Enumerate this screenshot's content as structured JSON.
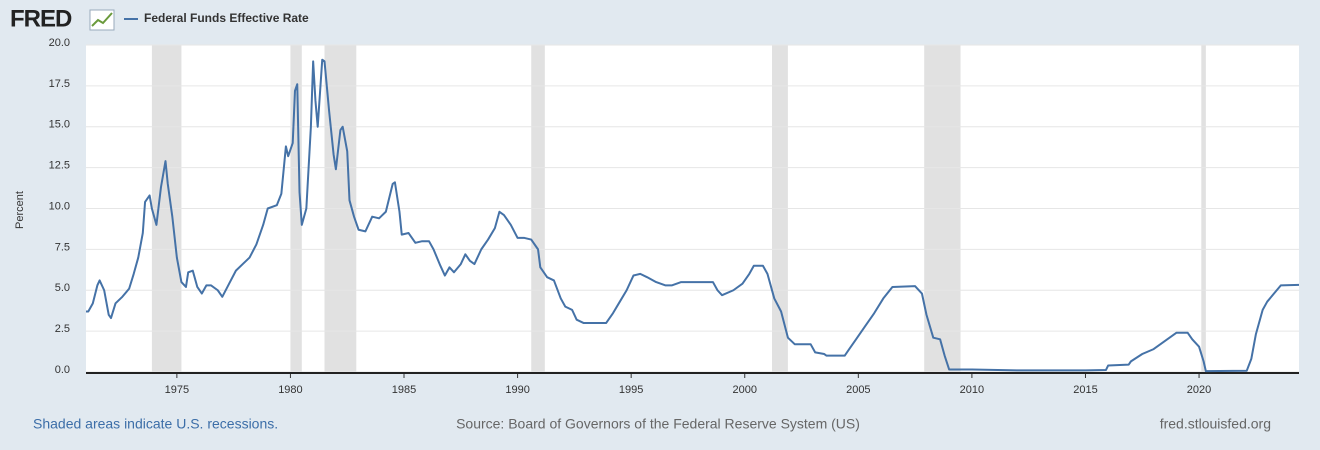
{
  "chart_data": {
    "type": "line",
    "logo": "FRED",
    "y_label": "Percent",
    "footer_left": "Shaded areas indicate U.S. recessions.",
    "source": "Source: Board of Governors of the Federal Reserve System (US)",
    "site": "fred.stlouisfed.org",
    "xlim": [
      1971,
      2024.4
    ],
    "ylim": [
      0,
      20
    ],
    "xticks": [
      1975,
      1980,
      1985,
      1990,
      1995,
      2000,
      2005,
      2010,
      2015,
      2020
    ],
    "yticks": [
      {
        "value": 0,
        "label": "0.0"
      },
      {
        "value": 2.5,
        "label": "2.5"
      },
      {
        "value": 5,
        "label": "5.0"
      },
      {
        "value": 7.5,
        "label": "7.5"
      },
      {
        "value": 10,
        "label": "10.0"
      },
      {
        "value": 12.5,
        "label": "12.5"
      },
      {
        "value": 15,
        "label": "15.0"
      },
      {
        "value": 17.5,
        "label": "17.5"
      },
      {
        "value": 20,
        "label": "20.0"
      }
    ],
    "grid": true,
    "recession_color": "#e1e1e1",
    "recessions": [
      [
        1973.9,
        1975.2
      ],
      [
        1980.0,
        1980.5
      ],
      [
        1981.5,
        1982.9
      ],
      [
        1990.6,
        1991.2
      ],
      [
        2001.2,
        2001.9
      ],
      [
        2007.9,
        2009.5
      ],
      [
        2020.1,
        2020.3
      ]
    ],
    "x": [
      1971.0,
      1971.1,
      1971.3,
      1971.5,
      1971.6,
      1971.8,
      1972.0,
      1972.1,
      1972.3,
      1972.6,
      1972.9,
      1973.1,
      1973.3,
      1973.5,
      1973.6,
      1973.8,
      1973.9,
      1974.1,
      1974.3,
      1974.5,
      1974.6,
      1974.8,
      1975.0,
      1975.2,
      1975.4,
      1975.5,
      1975.7,
      1975.9,
      1976.1,
      1976.3,
      1976.5,
      1976.8,
      1977.0,
      1977.3,
      1977.6,
      1977.9,
      1978.2,
      1978.5,
      1978.8,
      1979.0,
      1979.4,
      1979.6,
      1979.8,
      1979.9,
      1980.1,
      1980.2,
      1980.3,
      1980.4,
      1980.5,
      1980.7,
      1980.9,
      1981.0,
      1981.1,
      1981.2,
      1981.4,
      1981.5,
      1981.7,
      1981.9,
      1982.0,
      1982.2,
      1982.3,
      1982.5,
      1982.6,
      1982.8,
      1983.0,
      1983.3,
      1983.6,
      1983.9,
      1984.2,
      1984.5,
      1984.6,
      1984.8,
      1984.9,
      1985.2,
      1985.5,
      1985.8,
      1986.1,
      1986.3,
      1986.6,
      1986.8,
      1987.0,
      1987.2,
      1987.5,
      1987.7,
      1987.9,
      1988.1,
      1988.4,
      1988.7,
      1989.0,
      1989.2,
      1989.4,
      1989.7,
      1990.0,
      1990.3,
      1990.6,
      1990.9,
      1991.0,
      1991.3,
      1991.6,
      1991.9,
      1992.1,
      1992.4,
      1992.6,
      1992.9,
      1993.2,
      1993.6,
      1993.9,
      1994.2,
      1994.5,
      1994.8,
      1995.1,
      1995.4,
      1995.7,
      1996.1,
      1996.5,
      1996.8,
      1997.2,
      1997.6,
      1998.0,
      1998.6,
      1998.8,
      1999.0,
      1999.5,
      1999.9,
      2000.2,
      2000.4,
      2000.8,
      2001.0,
      2001.3,
      2001.6,
      2001.9,
      2002.2,
      2002.9,
      2003.1,
      2003.5,
      2003.6,
      2004.4,
      2004.6,
      2004.9,
      2005.3,
      2005.7,
      2006.1,
      2006.5,
      2007.5,
      2007.8,
      2008.0,
      2008.3,
      2008.6,
      2008.8,
      2009.0,
      2010.0,
      2012.0,
      2015.0,
      2015.9,
      2016.0,
      2016.9,
      2017.0,
      2017.5,
      2018.0,
      2018.5,
      2019.0,
      2019.5,
      2019.7,
      2020.0,
      2020.2,
      2020.3,
      2022.1,
      2022.3,
      2022.5,
      2022.8,
      2023.0,
      2023.3,
      2023.6,
      2024.4
    ],
    "series": [
      {
        "name": "Federal Funds Effective Rate",
        "color": "#4572a7",
        "values": [
          3.7,
          3.7,
          4.2,
          5.3,
          5.6,
          5.0,
          3.5,
          3.3,
          4.2,
          4.6,
          5.1,
          6.0,
          7.0,
          8.5,
          10.4,
          10.8,
          10.0,
          9.0,
          11.3,
          12.9,
          11.5,
          9.5,
          7.0,
          5.5,
          5.2,
          6.1,
          6.2,
          5.2,
          4.8,
          5.3,
          5.3,
          5.0,
          4.6,
          5.4,
          6.2,
          6.6,
          7.0,
          7.8,
          9.0,
          10.0,
          10.2,
          10.9,
          13.8,
          13.2,
          14.0,
          17.2,
          17.6,
          11.0,
          9.0,
          10.0,
          15.0,
          19.0,
          16.6,
          15.0,
          19.1,
          19.0,
          16.0,
          13.3,
          12.4,
          14.8,
          15.0,
          13.5,
          10.5,
          9.5,
          8.7,
          8.6,
          9.5,
          9.4,
          9.8,
          11.5,
          11.6,
          9.8,
          8.4,
          8.5,
          7.9,
          8.0,
          8.0,
          7.5,
          6.5,
          5.9,
          6.4,
          6.1,
          6.6,
          7.2,
          6.8,
          6.6,
          7.5,
          8.1,
          8.8,
          9.8,
          9.6,
          9.0,
          8.2,
          8.2,
          8.1,
          7.5,
          6.4,
          5.8,
          5.6,
          4.5,
          4.0,
          3.8,
          3.2,
          3.0,
          3.0,
          3.0,
          3.0,
          3.6,
          4.3,
          5.0,
          5.9,
          6.0,
          5.8,
          5.5,
          5.3,
          5.3,
          5.5,
          5.5,
          5.5,
          5.5,
          5.0,
          4.7,
          5.0,
          5.4,
          6.0,
          6.5,
          6.5,
          6.0,
          4.5,
          3.7,
          2.1,
          1.7,
          1.7,
          1.2,
          1.1,
          1.0,
          1.0,
          1.4,
          2.0,
          2.8,
          3.6,
          4.5,
          5.2,
          5.25,
          4.8,
          3.5,
          2.1,
          2.0,
          1.0,
          0.15,
          0.15,
          0.1,
          0.1,
          0.12,
          0.4,
          0.45,
          0.65,
          1.1,
          1.4,
          1.9,
          2.4,
          2.4,
          2.0,
          1.55,
          0.65,
          0.05,
          0.08,
          0.8,
          2.3,
          3.8,
          4.3,
          4.8,
          5.3,
          5.33
        ]
      }
    ]
  }
}
